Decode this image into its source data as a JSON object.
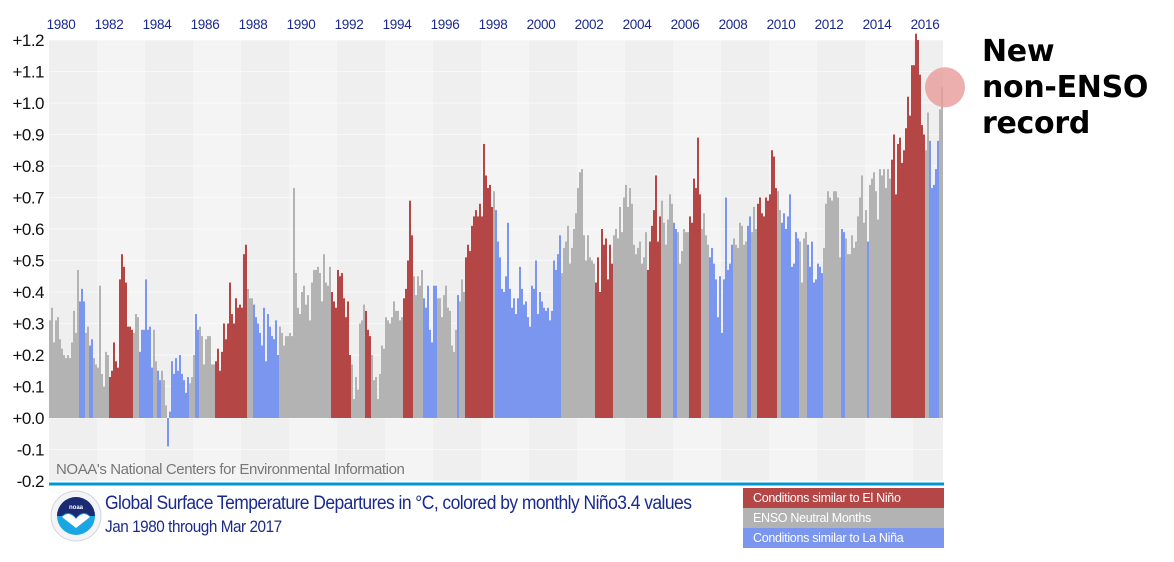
{
  "chart_data": {
    "type": "bar",
    "title": "Global Surface Temperature Departures in °C, colored by monthly Niño3.4 values",
    "subtitle": "Jan 1980 through Mar 2017",
    "credit": "NOAA's National Centers for Environmental Information",
    "xlabel": "",
    "ylabel": "",
    "ylim": [
      -0.2,
      1.2
    ],
    "yticks": [
      "+1.2",
      "+1.1",
      "+1.0",
      "+0.9",
      "+0.8",
      "+0.7",
      "+0.6",
      "+0.5",
      "+0.4",
      "+0.3",
      "+0.2",
      "+0.1",
      "+0.0",
      "-0.1",
      "-0.2"
    ],
    "ytick_values": [
      1.2,
      1.1,
      1.0,
      0.9,
      0.8,
      0.7,
      0.6,
      0.5,
      0.4,
      0.3,
      0.2,
      0.1,
      0.0,
      -0.1,
      -0.2
    ],
    "xticks": [
      "1980",
      "1982",
      "1984",
      "1986",
      "1988",
      "1990",
      "1992",
      "1994",
      "1996",
      "1998",
      "2000",
      "2002",
      "2004",
      "2006",
      "2008",
      "2010",
      "2012",
      "2014",
      "2016"
    ],
    "start": "1980-01",
    "end": "2017-03",
    "grid": true,
    "legend_position": "bottom-right",
    "legend": [
      {
        "key": "E",
        "label": "Conditions similar to El Niño",
        "color": "#b54646"
      },
      {
        "key": "N",
        "label": "ENSO Neutral Months",
        "color": "#b3b3b3"
      },
      {
        "key": "L",
        "label": "Conditions similar to La Niña",
        "color": "#7b96ef"
      }
    ],
    "colors": {
      "E": "#b54646",
      "N": "#b3b3b3",
      "L": "#7b96ef"
    },
    "annotation": {
      "lines": [
        "New",
        "non-ENSO",
        "record"
      ],
      "target": "2017-03",
      "value": 1.05,
      "color": "#e89a9a"
    },
    "series": [
      {
        "name": "Monthly global surface temperature departure (°C)",
        "years": [
          {
            "year": 1980,
            "values": [
              0.31,
              0.35,
              0.24,
              0.31,
              0.32,
              0.25,
              0.22,
              0.2,
              0.19,
              0.2,
              0.19,
              0.24
            ],
            "enso": "NNNNNNNNNNNN"
          },
          {
            "year": 1981,
            "values": [
              0.34,
              0.27,
              0.47,
              0.37,
              0.41,
              0.37,
              0.27,
              0.29,
              0.23,
              0.25,
              0.19,
              0.17
            ],
            "enso": "NNNLLLNNLLNN"
          },
          {
            "year": 1982,
            "values": [
              0.16,
              0.42,
              0.14,
              0.1,
              0.21,
              0.2,
              0.13,
              0.15,
              0.24,
              0.18,
              0.16,
              0.44
            ],
            "enso": "NNNNNNEEEEEE"
          },
          {
            "year": 1983,
            "values": [
              0.52,
              0.48,
              0.43,
              0.29,
              0.29,
              0.28,
              0.27,
              0.33,
              0.32,
              0.21,
              0.28,
              0.28
            ],
            "enso": "EEEEEENNNLLL"
          },
          {
            "year": 1984,
            "values": [
              0.44,
              0.28,
              0.29,
              0.16,
              0.28,
              0.18,
              0.15,
              0.12,
              0.15,
              0.12,
              0.04,
              -0.09
            ],
            "enso": "LLLLNNLLNNNL"
          },
          {
            "year": 1985,
            "values": [
              0.02,
              0.18,
              0.14,
              0.19,
              0.15,
              0.2,
              0.14,
              0.12,
              0.08,
              0.13,
              0.11,
              0.13
            ],
            "enso": "LLLLLLLLLLNN"
          },
          {
            "year": 1986,
            "values": [
              0.2,
              0.33,
              0.28,
              0.29,
              0.26,
              0.17,
              0.25,
              0.26,
              0.26,
              0.17,
              0.17,
              0.18
            ],
            "enso": "NLLNNNNNNNNE"
          },
          {
            "year": 1987,
            "values": [
              0.22,
              0.15,
              0.21,
              0.3,
              0.25,
              0.3,
              0.43,
              0.33,
              0.3,
              0.38,
              0.35,
              0.36
            ],
            "enso": "EEEEEEEEEEEE"
          },
          {
            "year": 1988,
            "values": [
              0.35,
              0.52,
              0.55,
              0.41,
              0.38,
              0.38,
              0.36,
              0.32,
              0.3,
              0.27,
              0.23,
              0.35
            ],
            "enso": "EEENNNLLLLLL"
          },
          {
            "year": 1989,
            "values": [
              0.18,
              0.33,
              0.29,
              0.26,
              0.25,
              0.31,
              0.2,
              0.29,
              0.27,
              0.23,
              0.26,
              0.26
            ],
            "enso": "LLLLLLLNNNNN"
          },
          {
            "year": 1990,
            "values": [
              0.27,
              0.26,
              0.73,
              0.46,
              0.35,
              0.33,
              0.4,
              0.42,
              0.36,
              0.39,
              0.31,
              0.43
            ],
            "enso": "NNNNNNNNNNNN"
          },
          {
            "year": 1991,
            "values": [
              0.47,
              0.47,
              0.48,
              0.46,
              0.37,
              0.52,
              0.43,
              0.42,
              0.48,
              0.4,
              0.37,
              0.35
            ],
            "enso": "NNNNNNNNNEEE"
          },
          {
            "year": 1992,
            "values": [
              0.47,
              0.45,
              0.46,
              0.38,
              0.32,
              0.37,
              0.2,
              0.17,
              0.06,
              0.13,
              0.09,
              0.3
            ],
            "enso": "EEEEEEENNNNN"
          },
          {
            "year": 1993,
            "values": [
              0.31,
              0.36,
              0.34,
              0.28,
              0.26,
              0.2,
              0.12,
              0.13,
              0.06,
              0.14,
              0.23,
              0.22
            ],
            "enso": "NNEEENNNNNNN"
          },
          {
            "year": 1994,
            "values": [
              0.32,
              0.31,
              0.3,
              0.32,
              0.37,
              0.34,
              0.34,
              0.31,
              0.32,
              0.38,
              0.41,
              0.5
            ],
            "enso": "NNNNNNNNNEEE"
          },
          {
            "year": 1995,
            "values": [
              0.69,
              0.58,
              0.45,
              0.39,
              0.45,
              0.42,
              0.47,
              0.38,
              0.35,
              0.42,
              0.28,
              0.24
            ],
            "enso": "EENNNNNLLLLL"
          },
          {
            "year": 1996,
            "values": [
              0.42,
              0.42,
              0.38,
              0.38,
              0.32,
              0.39,
              0.42,
              0.35,
              0.34,
              0.23,
              0.21,
              0.28
            ],
            "enso": "LLNNNNNNNNNN"
          },
          {
            "year": 1997,
            "values": [
              0.39,
              0.37,
              0.44,
              0.4,
              0.51,
              0.55,
              0.53,
              0.61,
              0.64,
              0.66,
              0.64,
              0.68
            ],
            "enso": "LNNNEEEEEEEE"
          },
          {
            "year": 1998,
            "values": [
              0.64,
              0.87,
              0.77,
              0.73,
              0.74,
              0.67,
              0.72,
              0.66,
              0.56,
              0.51,
              0.41,
              0.4
            ],
            "enso": "EEEEEENLLLLL"
          },
          {
            "year": 1999,
            "values": [
              0.45,
              0.62,
              0.41,
              0.35,
              0.38,
              0.33,
              0.38,
              0.48,
              0.41,
              0.36,
              0.37,
              0.32
            ],
            "enso": "LLLLLLLLLLLL"
          },
          {
            "year": 2000,
            "values": [
              0.29,
              0.42,
              0.41,
              0.5,
              0.33,
              0.4,
              0.37,
              0.35,
              0.34,
              0.35,
              0.31,
              0.34
            ],
            "enso": "LLLLLLLLLLLL"
          },
          {
            "year": 2001,
            "values": [
              0.5,
              0.47,
              0.52,
              0.58,
              0.46,
              0.54,
              0.56,
              0.61,
              0.49,
              0.54,
              0.6,
              0.65
            ],
            "enso": "LLLLNNNNNNNN"
          },
          {
            "year": 2002,
            "values": [
              0.73,
              0.78,
              0.79,
              0.58,
              0.5,
              0.58,
              0.51,
              0.5,
              0.49,
              0.43,
              0.51,
              0.4
            ],
            "enso": "NNNNNNNNNEEE"
          },
          {
            "year": 2003,
            "values": [
              0.6,
              0.55,
              0.57,
              0.44,
              0.55,
              0.49,
              0.58,
              0.6,
              0.57,
              0.67,
              0.59,
              0.7
            ],
            "enso": "EEEEEENNNNNN"
          },
          {
            "year": 2004,
            "values": [
              0.74,
              0.67,
              0.73,
              0.68,
              0.55,
              0.52,
              0.54,
              0.56,
              0.49,
              0.51,
              0.59,
              0.47
            ],
            "enso": "NNNNNNNNNNNE"
          },
          {
            "year": 2005,
            "values": [
              0.56,
              0.61,
              0.66,
              0.77,
              0.56,
              0.64,
              0.69,
              0.62,
              0.55,
              0.63,
              0.71,
              0.68
            ],
            "enso": "EEEEEENNNNNN"
          },
          {
            "year": 2006,
            "values": [
              0.62,
              0.6,
              0.59,
              0.49,
              0.53,
              0.6,
              0.59,
              0.59,
              0.64,
              0.62,
              0.76,
              0.73
            ],
            "enso": "LLNNNNNNEEEE"
          },
          {
            "year": 2007,
            "values": [
              0.89,
              0.71,
              0.6,
              0.65,
              0.58,
              0.55,
              0.51,
              0.54,
              0.49,
              0.44,
              0.32,
              0.45
            ],
            "enso": "EENNNNLLLLLL"
          },
          {
            "year": 2008,
            "values": [
              0.27,
              0.44,
              0.7,
              0.47,
              0.49,
              0.55,
              0.57,
              0.55,
              0.54,
              0.62,
              0.61,
              0.55
            ],
            "enso": "LLLLLLNNNNNN"
          },
          {
            "year": 2009,
            "values": [
              0.56,
              0.61,
              0.64,
              0.59,
              0.67,
              0.6,
              0.68,
              0.7,
              0.65,
              0.64,
              0.7,
              0.69
            ],
            "enso": "NLLNNNEEEEEE"
          },
          {
            "year": 2010,
            "values": [
              0.71,
              0.85,
              0.83,
              0.73,
              0.72,
              0.66,
              0.62,
              0.65,
              0.6,
              0.64,
              0.71,
              0.48
            ],
            "enso": "EEEENNLLLLLL"
          },
          {
            "year": 2011,
            "values": [
              0.49,
              0.59,
              0.57,
              0.56,
              0.43,
              0.57,
              0.59,
              0.55,
              0.48,
              0.56,
              0.43,
              0.44
            ],
            "enso": "LLLNNNNLLLLL"
          },
          {
            "year": 2012,
            "values": [
              0.49,
              0.48,
              0.46,
              0.54,
              0.68,
              0.72,
              0.7,
              0.69,
              0.72,
              0.72,
              0.7,
              0.51
            ],
            "enso": "LLLNNNNNNNNN"
          },
          {
            "year": 2013,
            "values": [
              0.6,
              0.59,
              0.57,
              0.52,
              0.52,
              0.58,
              0.54,
              0.56,
              0.64,
              0.7,
              0.77,
              0.62
            ],
            "enso": "LLNNNNNNNNNN"
          },
          {
            "year": 2014,
            "values": [
              0.66,
              0.56,
              0.74,
              0.76,
              0.78,
              0.72,
              0.63,
              0.79,
              0.77,
              0.79,
              0.73,
              0.79
            ],
            "enso": "NLNNNNNNNNNN"
          },
          {
            "year": 2015,
            "values": [
              0.76,
              0.82,
              0.9,
              0.71,
              0.87,
              0.89,
              0.81,
              0.85,
              0.92,
              1.02,
              0.96,
              1.12
            ],
            "enso": "NEEEEEEEEEEE"
          },
          {
            "year": 2016,
            "values": [
              1.12,
              1.22,
              1.2,
              1.09,
              0.93,
              0.9,
              0.85,
              0.97,
              0.88,
              0.73,
              0.74,
              0.79
            ],
            "enso": "EEEEEENNLLLL"
          },
          {
            "year": 2017,
            "values": [
              0.88,
              0.98,
              1.05
            ],
            "enso": "LNN"
          }
        ]
      }
    ]
  }
}
